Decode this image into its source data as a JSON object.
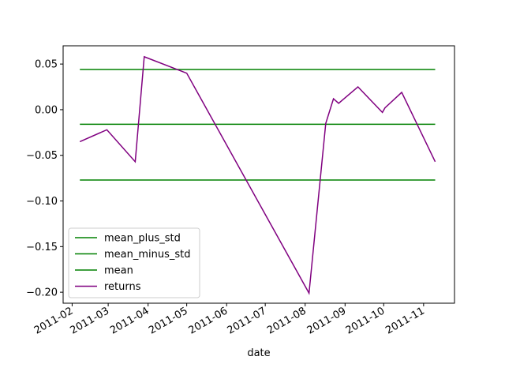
{
  "chart_data": {
    "type": "line",
    "title": "",
    "xlabel": "date",
    "ylabel": "",
    "xlim": [
      "2011-01-25",
      "2011-11-25"
    ],
    "ylim": [
      -0.212,
      0.07
    ],
    "x_ticks": [
      "2011-02-01",
      "2011-03-01",
      "2011-04-01",
      "2011-05-01",
      "2011-06-01",
      "2011-07-01",
      "2011-08-01",
      "2011-09-01",
      "2011-10-01",
      "2011-11-01"
    ],
    "x_tick_labels": [
      "2011-02",
      "2011-03",
      "2011-04",
      "2011-05",
      "2011-06",
      "2011-07",
      "2011-08",
      "2011-09",
      "2011-10",
      "2011-11"
    ],
    "y_ticks": [
      0.05,
      0.0,
      -0.05,
      -0.1,
      -0.15,
      -0.2
    ],
    "y_tick_labels": [
      "0.05",
      "0.00",
      "−0.05",
      "−0.10",
      "−0.15",
      "−0.20"
    ],
    "grid": false,
    "legend_position": "lower-left",
    "series": [
      {
        "name": "mean_plus_std",
        "color": "#008000",
        "x": [
          "2011-02-07",
          "2011-11-10"
        ],
        "y": [
          0.044,
          0.044
        ]
      },
      {
        "name": "mean_minus_std",
        "color": "#008000",
        "x": [
          "2011-02-07",
          "2011-11-10"
        ],
        "y": [
          -0.077,
          -0.077
        ]
      },
      {
        "name": "mean",
        "color": "#008000",
        "x": [
          "2011-02-07",
          "2011-11-10"
        ],
        "y": [
          -0.016,
          -0.016
        ]
      },
      {
        "name": "returns",
        "color": "#800080",
        "x": [
          "2011-02-07",
          "2011-02-28",
          "2011-03-22",
          "2011-03-29",
          "2011-05-01",
          "2011-08-04",
          "2011-08-17",
          "2011-08-23",
          "2011-08-27",
          "2011-09-11",
          "2011-09-30",
          "2011-10-02",
          "2011-10-15",
          "2011-11-10"
        ],
        "y": [
          -0.035,
          -0.022,
          -0.057,
          0.058,
          0.04,
          -0.201,
          -0.015,
          0.012,
          0.007,
          0.025,
          -0.003,
          0.002,
          0.019,
          -0.057
        ]
      }
    ]
  }
}
